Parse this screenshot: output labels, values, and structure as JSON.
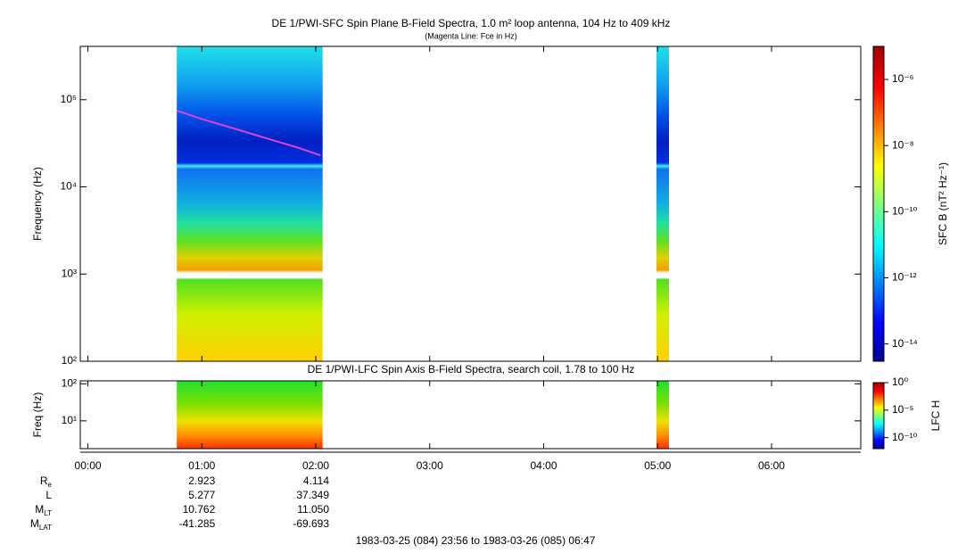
{
  "chart_data": [
    {
      "type": "spectrogram",
      "title": "DE 1/PWI-SFC  Spin Plane B-Field Spectra, 1.0 m² loop antenna, 104 Hz to 409 kHz",
      "subtitle": "(Magenta Line: Fce in Hz)",
      "ylabel": "Frequency (Hz)",
      "log_y": true,
      "xlim": [
        -0.067,
        6.783
      ],
      "ylim": [
        100,
        409000
      ],
      "yticks": [
        {
          "value": 100,
          "label": "10²"
        },
        {
          "value": 1000,
          "label": "10³"
        },
        {
          "value": 10000,
          "label": "10⁴"
        },
        {
          "value": 100000,
          "label": "10⁵"
        }
      ],
      "coverage": [
        [
          0.78,
          2.06
        ],
        [
          4.99,
          5.1
        ]
      ],
      "fce": {
        "color": "#e040e0",
        "x": [
          0.78,
          1.0,
          1.3,
          1.6,
          1.85,
          2.04
        ],
        "values": [
          75000,
          60000,
          46000,
          35000,
          28000,
          23000
        ]
      },
      "colorbar_label": "SFC B (nT² Hz⁻¹)",
      "clim": [
        3e-15,
        1e-05
      ],
      "cticks": [
        {
          "value": 1e-14,
          "label": "10⁻¹⁴"
        },
        {
          "value": 1e-12,
          "label": "10⁻¹²"
        },
        {
          "value": 1e-10,
          "label": "10⁻¹⁰"
        },
        {
          "value": 1e-08,
          "label": "10⁻⁸"
        },
        {
          "value": 1e-06,
          "label": "10⁻⁶"
        }
      ]
    },
    {
      "type": "spectrogram",
      "title": "DE 1/PWI-LFC  Spin Axis B-Field Spectra, search coil, 1.78 to 100 Hz",
      "ylabel": "Freq (Hz)",
      "log_y": true,
      "xlim": [
        -0.067,
        6.783
      ],
      "ylim": [
        1.78,
        120
      ],
      "yticks": [
        {
          "value": 10,
          "label": "10¹"
        },
        {
          "value": 100,
          "label": "10²"
        }
      ],
      "xticks": [
        {
          "value": 0,
          "label": "00:00"
        },
        {
          "value": 1,
          "label": "01:00"
        },
        {
          "value": 2,
          "label": "02:00"
        },
        {
          "value": 3,
          "label": "03:00"
        },
        {
          "value": 4,
          "label": "04:00"
        },
        {
          "value": 5,
          "label": "05:00"
        },
        {
          "value": 6,
          "label": "06:00"
        }
      ],
      "coverage": [
        [
          0.78,
          2.06
        ],
        [
          4.99,
          5.1
        ]
      ],
      "colorbar_label": "LFC H",
      "clim": [
        1e-12,
        1
      ],
      "cticks": [
        {
          "value": 1e-10,
          "label": "10⁻¹⁰"
        },
        {
          "value": 1e-05,
          "label": "10⁻⁵"
        },
        {
          "value": 1,
          "label": "10⁰"
        }
      ]
    }
  ],
  "ephemeris": {
    "x": [
      1,
      2
    ],
    "rows": [
      {
        "label": "R",
        "sub": "e",
        "values": [
          "2.923",
          "4.114"
        ]
      },
      {
        "label": "L",
        "values": [
          "5.277",
          "37.349"
        ]
      },
      {
        "label": "M",
        "sub": "LT",
        "values": [
          "10.762",
          "11.050"
        ]
      },
      {
        "label": "M",
        "sub": "LAT",
        "values": [
          "-41.285",
          "-69.693"
        ]
      }
    ]
  },
  "footer": "1983-03-25 (084) 23:56 to 1983-03-26 (085) 06:47"
}
